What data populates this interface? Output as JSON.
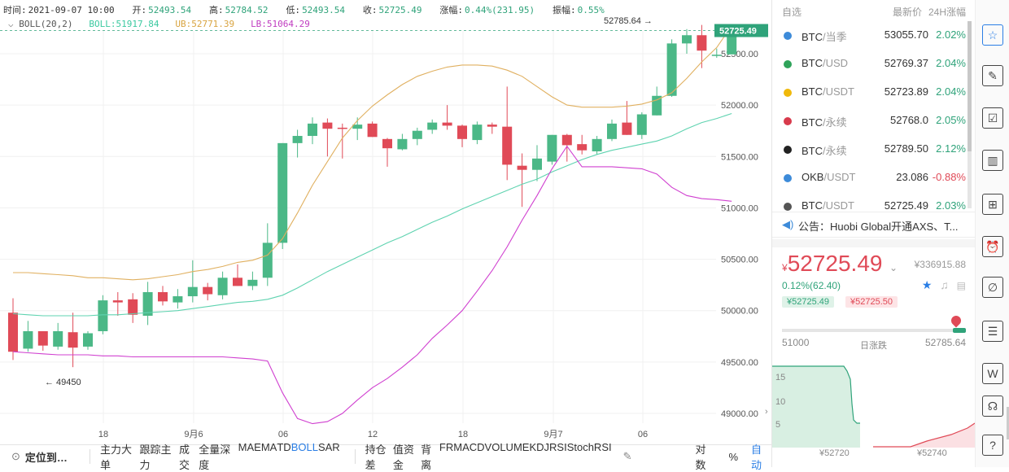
{
  "ohlc": {
    "time_label": "时间:",
    "time": "2021-09-07 10:00",
    "open_label": "开:",
    "open": "52493.54",
    "high_label": "高:",
    "high": "52784.52",
    "low_label": "低:",
    "low": "52493.54",
    "close_label": "收:",
    "close": "52725.49",
    "chg_label": "涨幅:",
    "chg": "0.44%(231.95)",
    "amp_label": "振幅:",
    "amp": "0.55%"
  },
  "boll": {
    "name": "BOLL(20,2)",
    "mid": "BOLL:51917.84",
    "ub": "UB:52771.39",
    "lb": "LB:51064.29"
  },
  "chart": {
    "max_label": "52785.64 →",
    "min_label": "← 49450",
    "current_price": "52725.49",
    "y_ticks": [
      "52500.00",
      "52000.00",
      "51500.00",
      "51000.00",
      "50500.00",
      "50000.00",
      "49500.00",
      "49000.00"
    ],
    "x_ticks": [
      "18",
      "9月6",
      "06",
      "12",
      "18",
      "9月7",
      "06"
    ],
    "colors": {
      "up": "#4bb887",
      "down": "#e04a57",
      "ub": "#e0b060",
      "mid": "#5fd3b0",
      "lb": "#d040d0",
      "price_tag": "#2fa37a"
    }
  },
  "toolbar": {
    "locate": "定位到…",
    "indicators_a": [
      "主力大单",
      "跟踪主力",
      "成交",
      "全量深度",
      "MA",
      "EMA",
      "TD",
      "BOLL",
      "SAR"
    ],
    "indicators_b": [
      "持仓差",
      "值资金",
      "背离",
      "FR",
      "MACD",
      "VOLUME",
      "KDJ",
      "RSI",
      "StochRSI"
    ],
    "log": "对数",
    "pct": "%",
    "auto": "自动"
  },
  "watchlist": {
    "tab": "自选",
    "col_price": "最新价",
    "col_chg": "24H涨幅",
    "rows": [
      {
        "sym": "BTC",
        "suffix": "/当季",
        "price": "53055.70",
        "chg": "2.02%",
        "color": "#3d8bd9"
      },
      {
        "sym": "BTC",
        "suffix": "/USD",
        "price": "52769.37",
        "chg": "2.04%",
        "color": "#2fa35a"
      },
      {
        "sym": "BTC",
        "suffix": "/USDT",
        "price": "52723.89",
        "chg": "2.04%",
        "color": "#f0b90b"
      },
      {
        "sym": "BTC",
        "suffix": "/永续",
        "price": "52768.0",
        "chg": "2.05%",
        "color": "#d83a4c"
      },
      {
        "sym": "BTC",
        "suffix": "/永续",
        "price": "52789.50",
        "chg": "2.12%",
        "color": "#222222"
      },
      {
        "sym": "OKB",
        "suffix": "/USDT",
        "price": "23.086",
        "chg": "-0.88%",
        "color": "#3d8bd9"
      },
      {
        "sym": "BTC",
        "suffix": "/USDT",
        "price": "52725.49",
        "chg": "2.03%",
        "color": "#555555"
      }
    ]
  },
  "notice": "公告：Huobi Global开通AXS、T...",
  "detail": {
    "currency": "¥",
    "price": "52725.49",
    "cny": "¥336915.88",
    "change": "0.12%(62.40)",
    "bid": "¥52725.49",
    "ask": "¥52725.50",
    "range_low": "51000",
    "range_label": "日涨跌",
    "range_high": "52785.64",
    "depth_y": [
      "15",
      "10",
      "5"
    ],
    "depth_x1": "¥52720",
    "depth_x2": "¥52740"
  },
  "tools": [
    "watchlist-icon",
    "notes-icon",
    "orders-icon",
    "bars-icon",
    "new-window-icon",
    "alarm-icon",
    "draw-icon",
    "list-icon",
    "w-icon",
    "support-icon",
    "help-icon"
  ]
}
